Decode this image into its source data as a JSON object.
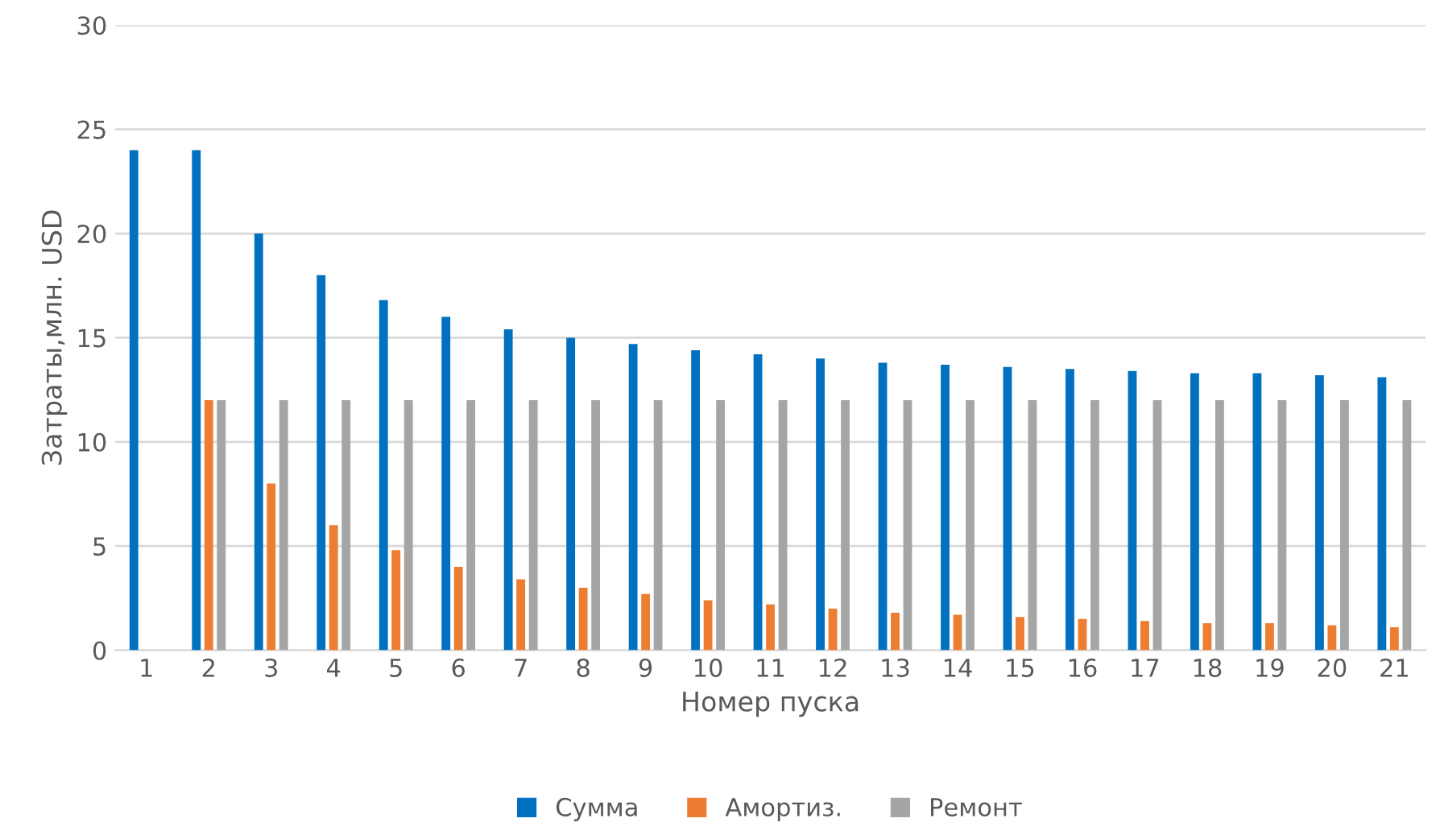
{
  "chart_data": {
    "type": "bar",
    "xlabel": "Номер пуска",
    "ylabel": "Затраты,млн. USD",
    "categories": [
      "1",
      "2",
      "3",
      "4",
      "5",
      "6",
      "7",
      "8",
      "9",
      "10",
      "11",
      "12",
      "13",
      "14",
      "15",
      "16",
      "17",
      "18",
      "19",
      "20",
      "21"
    ],
    "series": [
      {
        "name": "Сумма",
        "color": "#0070c0",
        "values": [
          24,
          24,
          20,
          18,
          16.8,
          16,
          15.4,
          15,
          14.7,
          14.4,
          14.2,
          14,
          13.8,
          13.7,
          13.6,
          13.5,
          13.4,
          13.3,
          13.3,
          13.2,
          13.1
        ]
      },
      {
        "name": "Амортиз.",
        "color": "#ed7d31",
        "values": [
          null,
          12,
          8,
          6,
          4.8,
          4,
          3.4,
          3,
          2.7,
          2.4,
          2.2,
          2,
          1.8,
          1.7,
          1.6,
          1.5,
          1.4,
          1.3,
          1.3,
          1.2,
          1.1
        ]
      },
      {
        "name": "Ремонт",
        "color": "#a5a5a5",
        "values": [
          null,
          12,
          12,
          12,
          12,
          12,
          12,
          12,
          12,
          12,
          12,
          12,
          12,
          12,
          12,
          12,
          12,
          12,
          12,
          12,
          12
        ]
      }
    ],
    "ylim": [
      0,
      30
    ],
    "yticks": [
      0,
      5,
      10,
      15,
      20,
      25,
      30
    ],
    "grid": "y",
    "legend": "bottom"
  }
}
